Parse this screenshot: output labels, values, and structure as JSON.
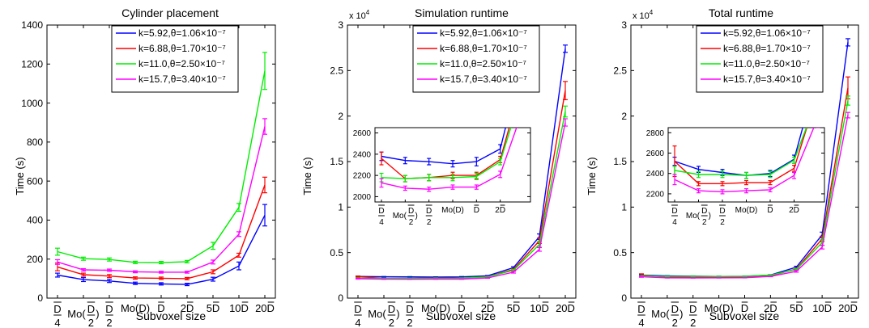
{
  "figure": {
    "xlabel_main": "Subvoxel size",
    "ylabel": "Time (s)",
    "xtick_labels": [
      "D/4",
      "Mo(D/2)",
      "D/2",
      "Mo(D)",
      "D",
      "2D",
      "5D",
      "10D",
      "20D"
    ],
    "inset_xtick_labels": [
      "D/4",
      "Mo(D/2)",
      "D/2",
      "Mo(D)",
      "D",
      "2D"
    ],
    "series_colors": [
      "#0000ff",
      "#ff0000",
      "#00ee00",
      "#ff00ff"
    ]
  },
  "chart_data": [
    {
      "type": "line",
      "title": "Cylinder placement",
      "xlabel": "Subvoxel size",
      "ylabel": "Time (s)",
      "categories": [
        "D/4",
        "Mo(D/2)",
        "D/2",
        "Mo(D)",
        "D",
        "2D",
        "5D",
        "10D",
        "20D"
      ],
      "ylim": [
        0,
        1400
      ],
      "yticks": [
        0,
        200,
        400,
        600,
        800,
        1000,
        1200,
        1400
      ],
      "ytick_labels": [
        "0",
        "200",
        "400",
        "600",
        "800",
        "1000",
        "1200",
        "1400"
      ],
      "legend": "top-right",
      "grid": false,
      "series": [
        {
          "name": "k=5.92,θ=1.06×10⁻⁷",
          "color": "#0000ff",
          "values": [
            118,
            95,
            88,
            76,
            73,
            70,
            97,
            165,
            425
          ],
          "err": [
            10,
            10,
            8,
            6,
            6,
            6,
            10,
            20,
            55
          ]
        },
        {
          "name": "k=6.88,θ=1.70×10⁻⁷",
          "color": "#ff0000",
          "values": [
            160,
            120,
            113,
            103,
            102,
            100,
            135,
            220,
            580
          ],
          "err": [
            20,
            8,
            8,
            6,
            6,
            6,
            10,
            10,
            40
          ]
        },
        {
          "name": "k=11.0,θ=2.50×10⁻⁷",
          "color": "#00ee00",
          "values": [
            238,
            202,
            198,
            183,
            182,
            187,
            268,
            465,
            1165
          ],
          "err": [
            18,
            8,
            8,
            6,
            6,
            6,
            18,
            20,
            95
          ]
        },
        {
          "name": "k=15.7,θ=3.40×10⁻⁷",
          "color": "#ff00ff",
          "values": [
            185,
            145,
            143,
            135,
            133,
            133,
            185,
            328,
            880
          ],
          "err": [
            12,
            6,
            6,
            5,
            5,
            5,
            10,
            12,
            40
          ]
        }
      ]
    },
    {
      "type": "line",
      "title": "Simulation runtime",
      "xlabel": "Subvoxel size",
      "ylabel": "Time (s)",
      "multiplier": "x 10",
      "multiplier_exp": "4",
      "categories": [
        "D/4",
        "Mo(D/2)",
        "D/2",
        "Mo(D)",
        "D",
        "2D",
        "5D",
        "10D",
        "20D"
      ],
      "ylim": [
        0,
        30000
      ],
      "yticks": [
        0,
        5000,
        10000,
        15000,
        20000,
        25000,
        30000
      ],
      "ytick_labels": [
        "0",
        "0.5",
        "1",
        "1.5",
        "2",
        "2.5",
        "3"
      ],
      "legend": "top-right",
      "grid": false,
      "series": [
        {
          "name": "k=5.92,θ=1.06×10⁻⁷",
          "color": "#0000ff",
          "values": [
            2380,
            2340,
            2330,
            2310,
            2330,
            2450,
            3350,
            6750,
            27400
          ],
          "err": [
            40,
            30,
            30,
            30,
            40,
            40,
            100,
            300,
            400
          ]
        },
        {
          "name": "k=6.88,θ=1.70×10⁻⁷",
          "color": "#ff0000",
          "values": [
            2360,
            2170,
            2180,
            2200,
            2200,
            2350,
            3150,
            6300,
            22800
          ],
          "err": [
            60,
            30,
            30,
            30,
            30,
            30,
            100,
            300,
            1000
          ]
        },
        {
          "name": "k=11.0,θ=2.50×10⁻⁷",
          "color": "#00ee00",
          "values": [
            2180,
            2170,
            2180,
            2180,
            2190,
            2330,
            3050,
            5900,
            20500
          ],
          "err": [
            40,
            30,
            30,
            30,
            30,
            30,
            100,
            300,
            600
          ]
        },
        {
          "name": "k=15.7,θ=3.40×10⁻⁷",
          "color": "#ff00ff",
          "values": [
            2130,
            2080,
            2070,
            2090,
            2090,
            2210,
            2850,
            5350,
            19300
          ],
          "err": [
            40,
            20,
            20,
            20,
            20,
            30,
            100,
            200,
            400
          ]
        }
      ],
      "inset": {
        "ylim": [
          1950,
          2650
        ],
        "yticks": [
          2000,
          2200,
          2400,
          2600
        ],
        "ytick_labels": [
          "2000",
          "2200",
          "2400",
          "2600"
        ]
      }
    },
    {
      "type": "line",
      "title": "Total runtime",
      "xlabel": "Subvoxel size",
      "ylabel": "Time (s)",
      "multiplier": "x 10",
      "multiplier_exp": "4",
      "categories": [
        "D/4",
        "Mo(D/2)",
        "D/2",
        "Mo(D)",
        "D",
        "2D",
        "5D",
        "10D",
        "20D"
      ],
      "ylim": [
        0,
        30000
      ],
      "yticks": [
        0,
        5000,
        10000,
        15000,
        20000,
        25000,
        30000
      ],
      "ytick_labels": [
        "0",
        "0.5",
        "1",
        "1.5",
        "2",
        "2.5",
        "3"
      ],
      "legend": "top-right",
      "grid": false,
      "series": [
        {
          "name": "k=5.92,θ=1.06×10⁻⁷",
          "color": "#0000ff",
          "values": [
            2520,
            2440,
            2410,
            2380,
            2400,
            2540,
            3400,
            6950,
            28100
          ],
          "err": [
            40,
            30,
            30,
            30,
            30,
            40,
            100,
            300,
            400
          ]
        },
        {
          "name": "k=6.88,θ=1.70×10⁻⁷",
          "color": "#ff0000",
          "values": [
            2520,
            2300,
            2300,
            2310,
            2310,
            2450,
            3200,
            6500,
            23100
          ],
          "err": [
            150,
            20,
            20,
            20,
            20,
            30,
            100,
            300,
            1200
          ]
        },
        {
          "name": "k=11.0,θ=2.50×10⁻⁷",
          "color": "#00ee00",
          "values": [
            2430,
            2390,
            2390,
            2380,
            2390,
            2530,
            3150,
            6100,
            21700
          ],
          "err": [
            40,
            30,
            30,
            30,
            30,
            30,
            100,
            300,
            500
          ]
        },
        {
          "name": "k=15.7,θ=3.40×10⁻⁷",
          "color": "#ff00ff",
          "values": [
            2340,
            2230,
            2220,
            2230,
            2240,
            2380,
            2950,
            5600,
            20100
          ],
          "err": [
            50,
            20,
            20,
            20,
            20,
            30,
            100,
            200,
            300
          ]
        }
      ],
      "inset": {
        "ylim": [
          2120,
          2850
        ],
        "yticks": [
          2200,
          2400,
          2600,
          2800
        ],
        "ytick_labels": [
          "2200",
          "2400",
          "2600",
          "2800"
        ]
      }
    }
  ]
}
